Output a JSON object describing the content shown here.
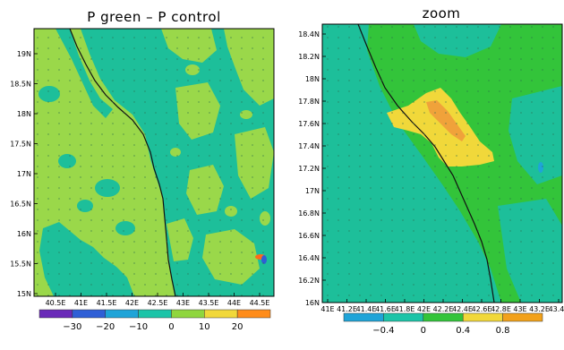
{
  "left_panel": {
    "title": "P green  –  P control",
    "y_ticks": [
      "19N",
      "18.5N",
      "18N",
      "17.5N",
      "17N",
      "16.5N",
      "16N",
      "15.5N",
      "15N"
    ],
    "x_ticks": [
      "40.5E",
      "41E",
      "41.5E",
      "42E",
      "42.5E",
      "43E",
      "43.5E",
      "44E",
      "44.5E"
    ],
    "colorbar": {
      "colors": [
        "#6a2ab8",
        "#2f5fd6",
        "#1fa4d8",
        "#1cc4a8",
        "#8fd63e",
        "#f1d83a",
        "#ff8c1a"
      ],
      "labels": [
        "−30",
        "−20",
        "−10",
        "0",
        "10",
        "20"
      ]
    }
  },
  "right_panel": {
    "title": "zoom",
    "y_ticks": [
      "18.4N",
      "18.2N",
      "18N",
      "17.8N",
      "17.6N",
      "17.4N",
      "17.2N",
      "17N",
      "16.8N",
      "16.6N",
      "16.4N",
      "16.2N",
      "16N"
    ],
    "x_ticks": [
      "41E",
      "41.2E",
      "41.4E",
      "41.6E",
      "41.8E",
      "42E",
      "42.2E",
      "42.4E",
      "42.6E",
      "42.8E",
      "43E",
      "43.2E",
      "43.4E"
    ],
    "colorbar": {
      "colors": [
        "#1fa4d8",
        "#1cc4a8",
        "#33c43a",
        "#f1d83a",
        "#f2a11a"
      ],
      "labels": [
        "−0.4",
        "0",
        "0.4",
        "0.8"
      ]
    }
  },
  "palette": {
    "teal": "#1dbf9a",
    "lightgreen": "#9ad84a",
    "green": "#33c43a",
    "yellow": "#f1d83a",
    "orange": "#f0a23a",
    "blue": "#1fa4d8",
    "coast": "#111111"
  }
}
